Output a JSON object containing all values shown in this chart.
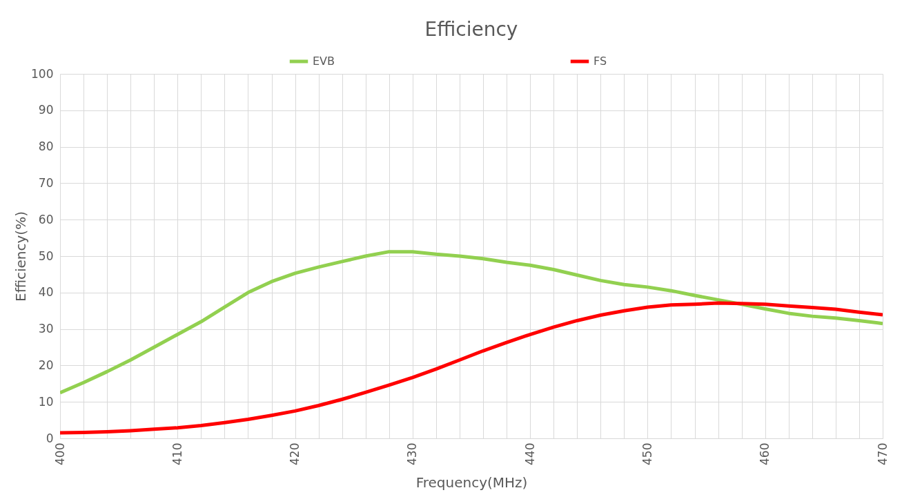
{
  "chart_data": {
    "type": "line",
    "title": "Efficiency",
    "xlabel": "Frequency(MHz)",
    "ylabel": "Efficiency(%)",
    "x": [
      400,
      402,
      404,
      406,
      408,
      410,
      412,
      414,
      416,
      418,
      420,
      422,
      424,
      426,
      428,
      430,
      432,
      434,
      436,
      438,
      440,
      442,
      444,
      446,
      448,
      450,
      452,
      454,
      456,
      458,
      460,
      462,
      464,
      466,
      468,
      470
    ],
    "series": [
      {
        "name": "EVB",
        "color": "#92d050",
        "values": [
          12.5,
          15.3,
          18.3,
          21.5,
          25,
          28.5,
          32,
          36,
          40,
          43,
          45.3,
          47,
          48.5,
          50,
          51.2,
          51.2,
          50.5,
          50,
          49.3,
          48.3,
          47.5,
          46.3,
          44.8,
          43.3,
          42.2,
          41.5,
          40.5,
          39.2,
          38,
          36.8,
          35.5,
          34.3,
          33.5,
          33,
          32.3,
          31.5
        ]
      },
      {
        "name": "FS",
        "color": "#ff0000",
        "values": [
          1.5,
          1.6,
          1.8,
          2.1,
          2.5,
          2.9,
          3.5,
          4.3,
          5.2,
          6.3,
          7.5,
          9,
          10.7,
          12.6,
          14.6,
          16.7,
          19,
          21.5,
          24,
          26.3,
          28.5,
          30.5,
          32.3,
          33.8,
          35,
          36,
          36.6,
          36.8,
          37.1,
          37,
          36.8,
          36.3,
          35.9,
          35.4,
          34.6,
          33.9
        ]
      }
    ],
    "xlim": [
      400,
      470
    ],
    "xticks": [
      400,
      {
        "value": 402,
        "label": null
      },
      {
        "value": 404,
        "label": null
      },
      {
        "value": 406,
        "label": null
      },
      {
        "value": 408,
        "label": null
      },
      410,
      {
        "value": 412,
        "label": null
      },
      {
        "value": 414,
        "label": null
      },
      {
        "value": 416,
        "label": null
      },
      {
        "value": 418,
        "label": null
      },
      420,
      {
        "value": 422,
        "label": null
      },
      {
        "value": 424,
        "label": null
      },
      {
        "value": 426,
        "label": null
      },
      {
        "value": 428,
        "label": null
      },
      430,
      {
        "value": 432,
        "label": null
      },
      {
        "value": 434,
        "label": null
      },
      {
        "value": 436,
        "label": null
      },
      {
        "value": 438,
        "label": null
      },
      440,
      {
        "value": 442,
        "label": null
      },
      {
        "value": 444,
        "label": null
      },
      {
        "value": 446,
        "label": null
      },
      {
        "value": 448,
        "label": null
      },
      450,
      {
        "value": 452,
        "label": null
      },
      {
        "value": 454,
        "label": null
      },
      {
        "value": 456,
        "label": null
      },
      {
        "value": 458,
        "label": null
      },
      460,
      {
        "value": 462,
        "label": null
      },
      {
        "value": 464,
        "label": null
      },
      {
        "value": 466,
        "label": null
      },
      {
        "value": 468,
        "label": null
      },
      470
    ],
    "ylim": [
      0,
      100
    ],
    "yticks": [
      0,
      10,
      20,
      30,
      40,
      50,
      60,
      70,
      80,
      90,
      100
    ],
    "grid": true,
    "legend": "top",
    "marker": "none",
    "line_style": "solid"
  }
}
